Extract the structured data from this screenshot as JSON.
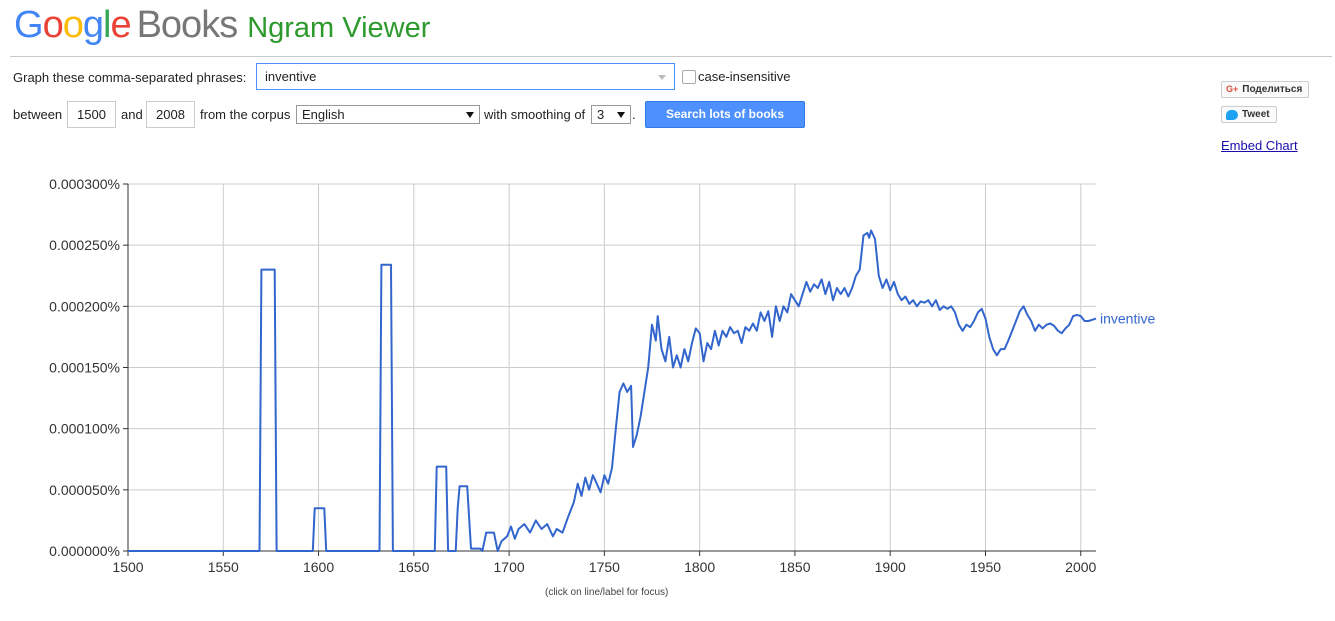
{
  "header": {
    "logo_google": "Google",
    "logo_books": "Books",
    "logo_ngram": "Ngram Viewer"
  },
  "form": {
    "phrases_label": "Graph these comma-separated phrases:",
    "phrases_value": "inventive",
    "case_insensitive_label": "case-insensitive",
    "between_label": "between",
    "start_year": "1500",
    "and_label": "and",
    "end_year": "2008",
    "corpus_label": "from the corpus",
    "corpus_value": "English",
    "smoothing_label": "with smoothing of",
    "smoothing_value": "3",
    "period": ".",
    "search_button": "Search lots of books"
  },
  "sidebar": {
    "share_label": "Поделиться",
    "tweet_label": "Tweet",
    "embed_label": "Embed Chart"
  },
  "colors": {
    "series": "#3366cc",
    "grid": "#cccccc",
    "brand_green": "#2e9a2e",
    "button": "#4d90fe"
  },
  "chart_data": {
    "type": "line",
    "xlim": [
      1500,
      2008
    ],
    "ylim": [
      0,
      0.0003
    ],
    "x_ticks": [
      "1500",
      "1550",
      "1600",
      "1650",
      "1700",
      "1750",
      "1800",
      "1850",
      "1900",
      "1950",
      "2000"
    ],
    "y_ticks": [
      "0.000000%",
      "0.000050%",
      "0.000100%",
      "0.000150%",
      "0.000200%",
      "0.000250%",
      "0.000300%"
    ],
    "grid": true,
    "series": [
      {
        "name": "inventive",
        "points": [
          [
            1500,
            0
          ],
          [
            1569,
            0
          ],
          [
            1570,
            0.00023
          ],
          [
            1577,
            0.00023
          ],
          [
            1578,
            0
          ],
          [
            1597,
            0
          ],
          [
            1598,
            3.5e-05
          ],
          [
            1603,
            3.5e-05
          ],
          [
            1604,
            0
          ],
          [
            1632,
            0
          ],
          [
            1633,
            0.000234
          ],
          [
            1638,
            0.000234
          ],
          [
            1639,
            0
          ],
          [
            1661,
            0
          ],
          [
            1662,
            6.9e-05
          ],
          [
            1667,
            6.9e-05
          ],
          [
            1668,
            0
          ],
          [
            1672,
            0
          ],
          [
            1673,
            3.5e-05
          ],
          [
            1674,
            5.3e-05
          ],
          [
            1678,
            5.3e-05
          ],
          [
            1680,
            2e-06
          ],
          [
            1685,
            2e-06
          ],
          [
            1686,
            0
          ],
          [
            1688,
            1.5e-05
          ],
          [
            1692,
            1.5e-05
          ],
          [
            1694,
            0
          ],
          [
            1696,
            8e-06
          ],
          [
            1699,
            1.2e-05
          ],
          [
            1701,
            2e-05
          ],
          [
            1703,
            1e-05
          ],
          [
            1705,
            1.8e-05
          ],
          [
            1708,
            2.2e-05
          ],
          [
            1711,
            1.5e-05
          ],
          [
            1714,
            2.5e-05
          ],
          [
            1717,
            1.8e-05
          ],
          [
            1720,
            2.2e-05
          ],
          [
            1723,
            1.2e-05
          ],
          [
            1725,
            1.8e-05
          ],
          [
            1728,
            1.5e-05
          ],
          [
            1731,
            2.8e-05
          ],
          [
            1734,
            4e-05
          ],
          [
            1736,
            5.5e-05
          ],
          [
            1738,
            4.5e-05
          ],
          [
            1740,
            6e-05
          ],
          [
            1742,
            5e-05
          ],
          [
            1744,
            6.2e-05
          ],
          [
            1746,
            5.5e-05
          ],
          [
            1748,
            4.8e-05
          ],
          [
            1750,
            6.2e-05
          ],
          [
            1752,
            5.5e-05
          ],
          [
            1754,
            6.8e-05
          ],
          [
            1756,
            0.0001
          ],
          [
            1758,
            0.00013
          ],
          [
            1760,
            0.000137
          ],
          [
            1762,
            0.00013
          ],
          [
            1764,
            0.000135
          ],
          [
            1765,
            8.5e-05
          ],
          [
            1767,
            9.5e-05
          ],
          [
            1769,
            0.00011
          ],
          [
            1771,
            0.00013
          ],
          [
            1773,
            0.00015
          ],
          [
            1775,
            0.000185
          ],
          [
            1777,
            0.000172
          ],
          [
            1778,
            0.000192
          ],
          [
            1780,
            0.000165
          ],
          [
            1782,
            0.000155
          ],
          [
            1784,
            0.000175
          ],
          [
            1786,
            0.00015
          ],
          [
            1788,
            0.00016
          ],
          [
            1790,
            0.00015
          ],
          [
            1792,
            0.000165
          ],
          [
            1794,
            0.000155
          ],
          [
            1796,
            0.00017
          ],
          [
            1798,
            0.000182
          ],
          [
            1800,
            0.000178
          ],
          [
            1802,
            0.000155
          ],
          [
            1804,
            0.00017
          ],
          [
            1806,
            0.000165
          ],
          [
            1808,
            0.00018
          ],
          [
            1810,
            0.000168
          ],
          [
            1812,
            0.00018
          ],
          [
            1814,
            0.000175
          ],
          [
            1816,
            0.000183
          ],
          [
            1818,
            0.000178
          ],
          [
            1820,
            0.00018
          ],
          [
            1822,
            0.00017
          ],
          [
            1824,
            0.000183
          ],
          [
            1826,
            0.00018
          ],
          [
            1828,
            0.000186
          ],
          [
            1830,
            0.00018
          ],
          [
            1832,
            0.000195
          ],
          [
            1834,
            0.000188
          ],
          [
            1836,
            0.000196
          ],
          [
            1838,
            0.000175
          ],
          [
            1840,
            0.0002
          ],
          [
            1842,
            0.000188
          ],
          [
            1844,
            0.0002
          ],
          [
            1846,
            0.000195
          ],
          [
            1848,
            0.00021
          ],
          [
            1850,
            0.000205
          ],
          [
            1852,
            0.0002
          ],
          [
            1854,
            0.00021
          ],
          [
            1856,
            0.00022
          ],
          [
            1858,
            0.000212
          ],
          [
            1860,
            0.000218
          ],
          [
            1862,
            0.000215
          ],
          [
            1864,
            0.000222
          ],
          [
            1866,
            0.00021
          ],
          [
            1868,
            0.00022
          ],
          [
            1870,
            0.000205
          ],
          [
            1872,
            0.000215
          ],
          [
            1874,
            0.00021
          ],
          [
            1876,
            0.000215
          ],
          [
            1878,
            0.000208
          ],
          [
            1880,
            0.000215
          ],
          [
            1882,
            0.000225
          ],
          [
            1884,
            0.00023
          ],
          [
            1886,
            0.000258
          ],
          [
            1888,
            0.00026
          ],
          [
            1889,
            0.000256
          ],
          [
            1890,
            0.000262
          ],
          [
            1892,
            0.000255
          ],
          [
            1894,
            0.000225
          ],
          [
            1896,
            0.000215
          ],
          [
            1898,
            0.000222
          ],
          [
            1900,
            0.000213
          ],
          [
            1902,
            0.00022
          ],
          [
            1904,
            0.00021
          ],
          [
            1906,
            0.000205
          ],
          [
            1908,
            0.000208
          ],
          [
            1910,
            0.000202
          ],
          [
            1912,
            0.000205
          ],
          [
            1914,
            0.0002
          ],
          [
            1916,
            0.000204
          ],
          [
            1918,
            0.000203
          ],
          [
            1920,
            0.000205
          ],
          [
            1922,
            0.0002
          ],
          [
            1924,
            0.000205
          ],
          [
            1926,
            0.000197
          ],
          [
            1928,
            0.0002
          ],
          [
            1930,
            0.000198
          ],
          [
            1932,
            0.0002
          ],
          [
            1934,
            0.000195
          ],
          [
            1936,
            0.000185
          ],
          [
            1938,
            0.00018
          ],
          [
            1940,
            0.000185
          ],
          [
            1942,
            0.000183
          ],
          [
            1944,
            0.000188
          ],
          [
            1946,
            0.000195
          ],
          [
            1948,
            0.000198
          ],
          [
            1950,
            0.00019
          ],
          [
            1952,
            0.000175
          ],
          [
            1954,
            0.000165
          ],
          [
            1956,
            0.00016
          ],
          [
            1958,
            0.000165
          ],
          [
            1960,
            0.000165
          ],
          [
            1962,
            0.000172
          ],
          [
            1964,
            0.00018
          ],
          [
            1966,
            0.000188
          ],
          [
            1968,
            0.000196
          ],
          [
            1970,
            0.0002
          ],
          [
            1972,
            0.000193
          ],
          [
            1974,
            0.000188
          ],
          [
            1976,
            0.00018
          ],
          [
            1978,
            0.000185
          ],
          [
            1980,
            0.000182
          ],
          [
            1982,
            0.000185
          ],
          [
            1984,
            0.000186
          ],
          [
            1986,
            0.000184
          ],
          [
            1988,
            0.00018
          ],
          [
            1990,
            0.000178
          ],
          [
            1992,
            0.000182
          ],
          [
            1994,
            0.000185
          ],
          [
            1996,
            0.000192
          ],
          [
            1998,
            0.000193
          ],
          [
            2000,
            0.000192
          ],
          [
            2002,
            0.000188
          ],
          [
            2004,
            0.000188
          ],
          [
            2006,
            0.000189
          ],
          [
            2008,
            0.00019
          ]
        ]
      }
    ],
    "footnote": "(click on line/label for focus)"
  }
}
